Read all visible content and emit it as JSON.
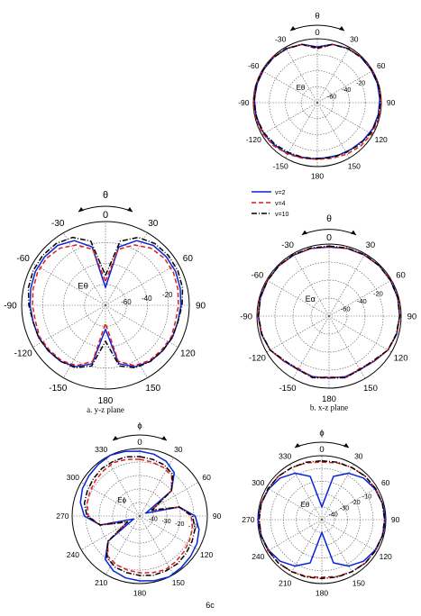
{
  "figure_label": "6c",
  "legend": [
    {
      "name": "v=2",
      "color": "#0a24d8",
      "dash": "solid"
    },
    {
      "name": "v=4",
      "color": "#e01b1b",
      "dash": "dashed"
    },
    {
      "name": "v=10",
      "color": "#000000",
      "dash": "dashdot"
    }
  ],
  "chart_data": [
    {
      "id": "top_right",
      "type": "polar",
      "angle_symbol": "θ",
      "angle_zero": "0",
      "angle_labels": [
        "0",
        "30",
        "60",
        "90",
        "120",
        "150",
        "180",
        "-150",
        "-120",
        "-90",
        "-60",
        "-30"
      ],
      "radial_labels": [
        "-60",
        "-40",
        "-20"
      ],
      "radial_label_angle": 65,
      "db_range": [
        -70,
        0
      ],
      "rings": 4,
      "spokes": 30,
      "field_label": "Eθ",
      "caption": "",
      "series": [
        {
          "name": "v=2",
          "r_db": [
            -9,
            -4,
            -2,
            -1,
            -1,
            -1,
            -1.5,
            -2,
            -3,
            -5,
            -7,
            -8,
            -9,
            -8,
            -7,
            -5,
            -3,
            -2,
            -1.5,
            -1,
            -1,
            -1,
            -1,
            -2,
            -4,
            -9
          ]
        },
        {
          "name": "v=4",
          "r_db": [
            -11,
            -4,
            -1.5,
            -0.5,
            0,
            0,
            0,
            -0.5,
            -1.5,
            -3,
            -5,
            -7,
            -8,
            -7,
            -5,
            -3,
            -1.5,
            -0.5,
            0,
            0,
            0,
            -0.5,
            -1.5,
            -4,
            -11
          ]
        },
        {
          "name": "v=10",
          "r_db": [
            -10,
            -4,
            -2,
            -1,
            -0.5,
            -0.5,
            -1,
            -1.5,
            -3,
            -5,
            -7,
            -8,
            -8.5,
            -8,
            -7,
            -5,
            -3,
            -1.5,
            -1,
            -0.5,
            -0.5,
            -1,
            -2,
            -4,
            -10
          ]
        }
      ]
    },
    {
      "id": "yz",
      "type": "polar",
      "angle_symbol": "θ",
      "angle_zero": "0",
      "angle_labels": [
        "0",
        "30",
        "60",
        "90",
        "120",
        "150",
        "180",
        "-150",
        "-120",
        "-90",
        "-60",
        "-30"
      ],
      "radial_labels": [
        "-60",
        "-40",
        "-20"
      ],
      "radial_label_angle": 80,
      "db_range": [
        -70,
        0
      ],
      "rings": 4,
      "spokes": 30,
      "field_label": "Eθ",
      "caption": "a. y-z plane",
      "series": [
        {
          "name": "v=2",
          "r_db": [
            -55,
            -20,
            -10,
            -6,
            -5,
            -5,
            -6,
            -7,
            -8,
            -8,
            -9,
            -10,
            -13,
            -20,
            -50,
            -20,
            -13,
            -10,
            -9,
            -8,
            -8,
            -7,
            -6,
            -5,
            -5,
            -6,
            -10,
            -20,
            -55
          ]
        },
        {
          "name": "v=4",
          "r_db": [
            -50,
            -22,
            -14,
            -9,
            -7,
            -7,
            -8,
            -9,
            -10,
            -9,
            -10,
            -11,
            -14,
            -22,
            -55,
            -22,
            -14,
            -11,
            -10,
            -9,
            -10,
            -9,
            -8,
            -7,
            -7,
            -9,
            -14,
            -22,
            -50
          ]
        },
        {
          "name": "v=10",
          "r_db": [
            -45,
            -15,
            -7,
            -4,
            -3,
            -3,
            -4,
            -6,
            -8,
            -8,
            -9,
            -10,
            -12,
            -18,
            -40,
            -18,
            -12,
            -10,
            -9,
            -8,
            -8,
            -6,
            -4,
            -3,
            -3,
            -4,
            -7,
            -15,
            -45
          ]
        }
      ]
    },
    {
      "id": "xz",
      "type": "polar",
      "angle_symbol": "θ",
      "angle_zero": "0",
      "angle_labels": [
        "0",
        "30",
        "60",
        "90",
        "120",
        "150",
        "180",
        "-150",
        "-120",
        "-90",
        "-60",
        "-30"
      ],
      "radial_labels": [
        "-60",
        "-40",
        "-20"
      ],
      "radial_label_angle": 65,
      "db_range": [
        -70,
        0
      ],
      "rings": 4,
      "spokes": 30,
      "field_label": "Eα",
      "caption": "b. x-z plane",
      "series": [
        {
          "name": "v=2",
          "r_db": [
            -3,
            -2,
            -1.5,
            -1,
            -1,
            -1,
            -1.5,
            -2,
            -4,
            -8,
            -10,
            -9,
            -10,
            -9,
            -10,
            -8,
            -4,
            -2,
            -1.5,
            -1,
            -1,
            -1,
            -1.5,
            -2,
            -3
          ]
        },
        {
          "name": "v=4",
          "r_db": [
            -2.5,
            -2,
            -1.5,
            -1,
            -0.5,
            -0.5,
            -1,
            -2,
            -4,
            -8,
            -11,
            -8,
            -11,
            -8,
            -11,
            -8,
            -4,
            -2,
            -1,
            -0.5,
            -0.5,
            -1,
            -1.5,
            -2,
            -2.5
          ]
        },
        {
          "name": "v=10",
          "r_db": [
            -2,
            -1.5,
            -1,
            -1,
            -1,
            -1,
            -1.5,
            -2.5,
            -4,
            -9,
            -10,
            -8,
            -10,
            -8,
            -10,
            -9,
            -4,
            -2.5,
            -1.5,
            -1,
            -1,
            -1,
            -1,
            -1.5,
            -2
          ]
        }
      ]
    },
    {
      "id": "phi_left",
      "type": "polar",
      "angle_symbol": "ϕ",
      "angle_zero": "0",
      "angle_labels": [
        "0",
        "30",
        "60",
        "90",
        "120",
        "150",
        "180",
        "210",
        "240",
        "270",
        "300",
        "330"
      ],
      "radial_labels": [
        "-40",
        "-30",
        "-20",
        "-10"
      ],
      "radial_label_angle": 100,
      "db_range": [
        -50,
        0
      ],
      "rings": 5,
      "spokes": 30,
      "field_label": "Eϕ",
      "caption": "",
      "series": [
        {
          "name": "v=2",
          "r_db": [
            -2,
            -3,
            -5,
            -9,
            -20,
            -45,
            -20,
            -9,
            -5,
            -3,
            -2,
            -1,
            0,
            -1,
            -2,
            -3,
            -5,
            -9,
            -20,
            -45,
            -20,
            -9,
            -5,
            -3,
            -2,
            -1,
            0,
            -1,
            -2
          ]
        },
        {
          "name": "v=4",
          "r_db": [
            -8,
            -9,
            -10,
            -12,
            -20,
            -40,
            -20,
            -12,
            -10,
            -9,
            -8,
            -7,
            -6,
            -7,
            -8,
            -9,
            -10,
            -12,
            -20,
            -40,
            -20,
            -12,
            -10,
            -9,
            -8,
            -7,
            -6,
            -7,
            -8
          ]
        },
        {
          "name": "v=10",
          "r_db": [
            -6,
            -7,
            -8,
            -11,
            -20,
            -40,
            -20,
            -11,
            -8,
            -7,
            -6,
            -5,
            -5,
            -5,
            -6,
            -7,
            -8,
            -11,
            -20,
            -40,
            -20,
            -11,
            -8,
            -7,
            -6,
            -5,
            -5,
            -5,
            -6
          ]
        }
      ]
    },
    {
      "id": "phi_right",
      "type": "polar",
      "angle_symbol": "ϕ",
      "angle_zero": "0",
      "angle_labels": [
        "0",
        "30",
        "60",
        "90",
        "120",
        "150",
        "180",
        "210",
        "240",
        "270",
        "300",
        "330"
      ],
      "radial_labels": [
        "-40",
        "-30",
        "-20",
        "-10"
      ],
      "radial_label_angle": 62,
      "db_range": [
        -50,
        0
      ],
      "rings": 5,
      "spokes": 30,
      "field_label": "Eθ",
      "caption": "",
      "series": [
        {
          "name": "v=2",
          "r_db": [
            -40,
            -15,
            -8,
            -4,
            -2,
            -1,
            0,
            -1,
            -2,
            -4,
            -8,
            -15,
            -40,
            -15,
            -8,
            -4,
            -2,
            -1,
            0,
            -1,
            -2,
            -4,
            -8,
            -15,
            -40
          ]
        },
        {
          "name": "v=4",
          "r_db": [
            -5,
            -4,
            -3,
            -2,
            -1.5,
            -1,
            -1,
            -1,
            -1.5,
            -2,
            -3,
            -4,
            -5,
            -4,
            -3,
            -2,
            -1.5,
            -1,
            -1,
            -1,
            -1.5,
            -2,
            -3,
            -4,
            -5
          ]
        },
        {
          "name": "v=10",
          "r_db": [
            -4,
            -3.5,
            -3,
            -2,
            -1.5,
            -1,
            -1,
            -1,
            -1.5,
            -2,
            -3,
            -3.5,
            -4,
            -3.5,
            -3,
            -2,
            -1.5,
            -1,
            -1,
            -1,
            -1.5,
            -2,
            -3,
            -3.5,
            -4
          ]
        }
      ]
    }
  ]
}
